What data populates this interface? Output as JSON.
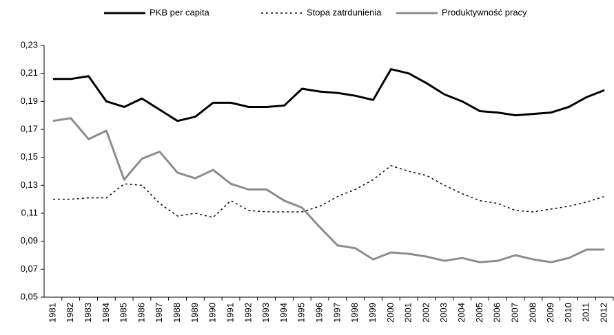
{
  "chart_data": {
    "type": "line",
    "categories": [
      "1981",
      "1982",
      "1983",
      "1984",
      "1985",
      "1986",
      "1987",
      "1988",
      "1989",
      "1990",
      "1991",
      "1992",
      "1993",
      "1994",
      "1995",
      "1996",
      "1997",
      "1998",
      "1999",
      "2000",
      "2001",
      "2002",
      "2003",
      "2004",
      "2005",
      "2006",
      "2007",
      "2008",
      "2009",
      "2010",
      "2011",
      "2012"
    ],
    "series": [
      {
        "name": "PKB per capita",
        "color": "#000000",
        "width": 3,
        "dash": "none",
        "values": [
          0.206,
          0.206,
          0.208,
          0.19,
          0.186,
          0.192,
          0.184,
          0.176,
          0.179,
          0.189,
          0.189,
          0.186,
          0.186,
          0.187,
          0.199,
          0.197,
          0.196,
          0.194,
          0.191,
          0.213,
          0.21,
          0.203,
          0.195,
          0.19,
          0.183,
          0.182,
          0.18,
          0.181,
          0.182,
          0.186,
          0.193,
          0.198
        ]
      },
      {
        "name": "Stopa zatrdunienia",
        "color": "#000000",
        "width": 1.5,
        "dash": "3 4",
        "values": [
          0.12,
          0.12,
          0.121,
          0.121,
          0.131,
          0.13,
          0.117,
          0.108,
          0.11,
          0.107,
          0.119,
          0.112,
          0.111,
          0.111,
          0.111,
          0.115,
          0.122,
          0.127,
          0.134,
          0.144,
          0.14,
          0.137,
          0.13,
          0.124,
          0.119,
          0.117,
          0.112,
          0.111,
          0.113,
          0.115,
          0.118,
          0.122
        ]
      },
      {
        "name": "Produktywność pracy",
        "color": "#8c8c8c",
        "width": 3,
        "dash": "none",
        "values": [
          0.176,
          0.178,
          0.163,
          0.169,
          0.134,
          0.149,
          0.154,
          0.139,
          0.135,
          0.141,
          0.131,
          0.127,
          0.127,
          0.119,
          0.114,
          0.1,
          0.087,
          0.085,
          0.077,
          0.082,
          0.081,
          0.079,
          0.076,
          0.078,
          0.075,
          0.076,
          0.08,
          0.077,
          0.075,
          0.078,
          0.084,
          0.084
        ]
      }
    ],
    "ylim": [
      0.05,
      0.23
    ],
    "yticks": [
      {
        "value": 0.05,
        "label": "0,05"
      },
      {
        "value": 0.07,
        "label": "0,07"
      },
      {
        "value": 0.09,
        "label": "0,09"
      },
      {
        "value": 0.11,
        "label": "0,11"
      },
      {
        "value": 0.13,
        "label": "0,13"
      },
      {
        "value": 0.15,
        "label": "0,15"
      },
      {
        "value": 0.17,
        "label": "0,17"
      },
      {
        "value": 0.19,
        "label": "0,19"
      },
      {
        "value": 0.21,
        "label": "0,21"
      },
      {
        "value": 0.23,
        "label": "0,23"
      }
    ],
    "grid": false,
    "legend": "top"
  }
}
